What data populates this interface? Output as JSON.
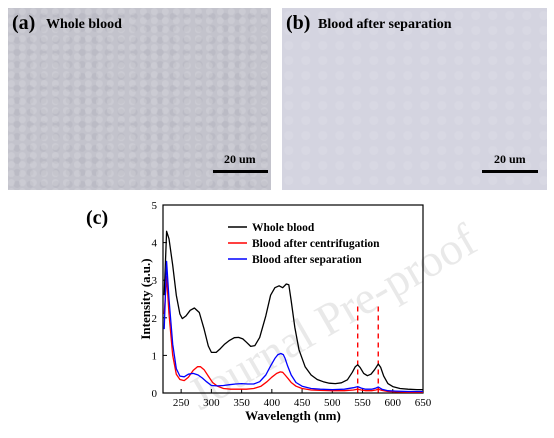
{
  "panel_a": {
    "label": "(a)",
    "title": "Whole blood",
    "scale": "20 um"
  },
  "panel_b": {
    "label": "(b)",
    "title": "Blood after separation",
    "scale": "20 um"
  },
  "panel_c": {
    "label": "(c)"
  },
  "watermark": "Journal Pre-proof",
  "chart_data": {
    "type": "line",
    "xlabel": "Wavelength (nm)",
    "ylabel": "Intensity (a.u.)",
    "xlim": [
      220,
      650
    ],
    "ylim": [
      0,
      5
    ],
    "xticks": [
      250,
      300,
      350,
      400,
      450,
      500,
      550,
      600,
      650
    ],
    "yticks": [
      0,
      1,
      2,
      3,
      4,
      5
    ],
    "legend_position": "top-right",
    "reference_lines": [
      {
        "x": 542,
        "color": "#ff0000",
        "style": "dashed"
      },
      {
        "x": 576,
        "color": "#ff0000",
        "style": "dashed"
      }
    ],
    "series": [
      {
        "name": "Whole blood",
        "color": "#000000",
        "x": [
          222,
          226,
          230,
          236,
          242,
          248,
          252,
          258,
          265,
          272,
          280,
          288,
          295,
          300,
          308,
          315,
          322,
          330,
          338,
          345,
          352,
          358,
          365,
          372,
          380,
          390,
          398,
          405,
          412,
          418,
          424,
          428,
          432,
          438,
          445,
          455,
          465,
          475,
          485,
          495,
          505,
          515,
          525,
          533,
          538,
          542,
          546,
          552,
          558,
          564,
          570,
          576,
          580,
          585,
          592,
          600,
          612,
          625,
          640,
          650
        ],
        "y": [
          2.6,
          4.3,
          4.1,
          3.4,
          2.6,
          2.1,
          1.98,
          2.05,
          2.2,
          2.26,
          2.14,
          1.7,
          1.25,
          1.08,
          1.08,
          1.18,
          1.3,
          1.4,
          1.47,
          1.48,
          1.44,
          1.35,
          1.24,
          1.26,
          1.48,
          2.05,
          2.6,
          2.8,
          2.85,
          2.8,
          2.9,
          2.88,
          2.45,
          1.75,
          1.15,
          0.7,
          0.48,
          0.36,
          0.3,
          0.26,
          0.25,
          0.27,
          0.35,
          0.55,
          0.7,
          0.75,
          0.68,
          0.52,
          0.46,
          0.5,
          0.62,
          0.77,
          0.68,
          0.45,
          0.25,
          0.17,
          0.12,
          0.1,
          0.09,
          0.09
        ]
      },
      {
        "name": "Blood after centrifugation",
        "color": "#ff0000",
        "x": [
          222,
          226,
          230,
          236,
          242,
          248,
          255,
          262,
          270,
          277,
          282,
          288,
          295,
          302,
          310,
          320,
          332,
          345,
          358,
          370,
          382,
          392,
          400,
          408,
          414,
          418,
          422,
          427,
          432,
          440,
          450,
          465,
          480,
          500,
          520,
          535,
          542,
          548,
          555,
          565,
          572,
          576,
          582,
          592,
          605,
          625,
          650
        ],
        "y": [
          2.1,
          3.1,
          2.1,
          1.0,
          0.5,
          0.36,
          0.33,
          0.42,
          0.6,
          0.7,
          0.7,
          0.62,
          0.45,
          0.28,
          0.18,
          0.12,
          0.1,
          0.1,
          0.1,
          0.12,
          0.18,
          0.3,
          0.42,
          0.52,
          0.56,
          0.55,
          0.48,
          0.38,
          0.28,
          0.18,
          0.12,
          0.08,
          0.07,
          0.06,
          0.06,
          0.08,
          0.1,
          0.08,
          0.06,
          0.06,
          0.08,
          0.1,
          0.07,
          0.04,
          0.03,
          0.02,
          0.02
        ]
      },
      {
        "name": "Blood after separation",
        "color": "#0000ff",
        "x": [
          222,
          226,
          230,
          236,
          242,
          248,
          255,
          262,
          270,
          278,
          285,
          292,
          300,
          310,
          320,
          330,
          340,
          350,
          360,
          370,
          380,
          390,
          398,
          405,
          410,
          415,
          419,
          422,
          426,
          432,
          440,
          450,
          465,
          480,
          500,
          520,
          535,
          542,
          548,
          555,
          565,
          572,
          576,
          582,
          592,
          605,
          625,
          650
        ],
        "y": [
          1.7,
          3.5,
          2.5,
          1.3,
          0.65,
          0.45,
          0.43,
          0.5,
          0.52,
          0.48,
          0.4,
          0.3,
          0.2,
          0.19,
          0.2,
          0.22,
          0.24,
          0.25,
          0.24,
          0.24,
          0.3,
          0.48,
          0.72,
          0.92,
          1.02,
          1.05,
          1.02,
          0.92,
          0.72,
          0.48,
          0.28,
          0.18,
          0.12,
          0.1,
          0.09,
          0.1,
          0.14,
          0.17,
          0.13,
          0.1,
          0.1,
          0.13,
          0.16,
          0.1,
          0.06,
          0.05,
          0.04,
          0.04
        ]
      }
    ]
  }
}
